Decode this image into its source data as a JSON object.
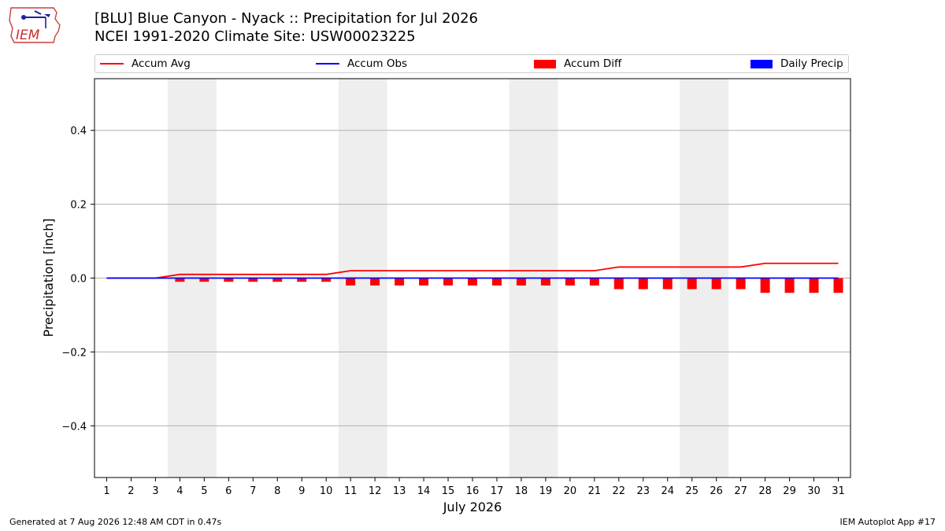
{
  "header": {
    "title_line1": "[BLU] Blue Canyon - Nyack :: Precipitation for Jul 2026",
    "title_line2": "NCEI 1991-2020 Climate Site: USW00023225",
    "logo_text": "IEM"
  },
  "legend": [
    {
      "label": "Accum Avg",
      "kind": "line",
      "color": "#ff0000"
    },
    {
      "label": "Accum Obs",
      "kind": "line",
      "color": "#0000ff"
    },
    {
      "label": "Accum Diff",
      "kind": "box",
      "color": "#ff0000"
    },
    {
      "label": "Daily Precip",
      "kind": "box",
      "color": "#0000ff"
    }
  ],
  "footer": {
    "generated": "Generated at 7 Aug 2026 12:48 AM CDT in 0.47s",
    "app": "IEM Autoplot App #17"
  },
  "chart_data": {
    "type": "line",
    "xlabel": "July 2026",
    "ylabel": "Precipitation [inch]",
    "xlim": [
      0.5,
      31.5
    ],
    "ylim": [
      -0.54,
      0.54
    ],
    "yticks": [
      -0.4,
      -0.2,
      0.0,
      0.2,
      0.4
    ],
    "ytick_labels": [
      "−0.4",
      "−0.2",
      "0.0",
      "0.2",
      "0.4"
    ],
    "x": [
      1,
      2,
      3,
      4,
      5,
      6,
      7,
      8,
      9,
      10,
      11,
      12,
      13,
      14,
      15,
      16,
      17,
      18,
      19,
      20,
      21,
      22,
      23,
      24,
      25,
      26,
      27,
      28,
      29,
      30,
      31
    ],
    "grid": "horizontal",
    "weekend_shading": [
      [
        3.5,
        5.5
      ],
      [
        10.5,
        12.5
      ],
      [
        17.5,
        19.5
      ],
      [
        24.5,
        26.5
      ]
    ],
    "weekend_color": "#eeeeee",
    "series": [
      {
        "name": "Accum Avg",
        "kind": "line",
        "color": "#ff0000",
        "values": [
          0,
          0,
          0,
          0.01,
          0.01,
          0.01,
          0.01,
          0.01,
          0.01,
          0.01,
          0.02,
          0.02,
          0.02,
          0.02,
          0.02,
          0.02,
          0.02,
          0.02,
          0.02,
          0.02,
          0.02,
          0.03,
          0.03,
          0.03,
          0.03,
          0.03,
          0.03,
          0.04,
          0.04,
          0.04,
          0.04
        ]
      },
      {
        "name": "Accum Obs",
        "kind": "line",
        "color": "#0000ff",
        "values": [
          0,
          0,
          0,
          0,
          0,
          0,
          0,
          0,
          0,
          0,
          0,
          0,
          0,
          0,
          0,
          0,
          0,
          0,
          0,
          0,
          0,
          0,
          0,
          0,
          0,
          0,
          0,
          0,
          0,
          0,
          0
        ]
      },
      {
        "name": "Accum Diff",
        "kind": "bar",
        "color": "#ff0000",
        "values": [
          0,
          0,
          0,
          -0.01,
          -0.01,
          -0.01,
          -0.01,
          -0.01,
          -0.01,
          -0.01,
          -0.02,
          -0.02,
          -0.02,
          -0.02,
          -0.02,
          -0.02,
          -0.02,
          -0.02,
          -0.02,
          -0.02,
          -0.02,
          -0.03,
          -0.03,
          -0.03,
          -0.03,
          -0.03,
          -0.03,
          -0.04,
          -0.04,
          -0.04,
          -0.04
        ]
      },
      {
        "name": "Daily Precip",
        "kind": "bar",
        "color": "#0000ff",
        "values": [
          0,
          0,
          0,
          0,
          0,
          0,
          0,
          0,
          0,
          0,
          0,
          0,
          0,
          0,
          0,
          0,
          0,
          0,
          0,
          0,
          0,
          0,
          0,
          0,
          0,
          0,
          0,
          0,
          0,
          0,
          0
        ]
      }
    ]
  }
}
